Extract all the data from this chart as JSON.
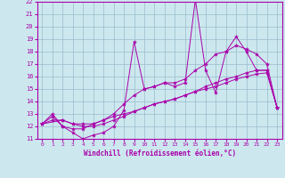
{
  "xlabel": "Windchill (Refroidissement éolien,°C)",
  "xlim": [
    -0.5,
    23.5
  ],
  "ylim": [
    11,
    22
  ],
  "xticks": [
    0,
    1,
    2,
    3,
    4,
    5,
    6,
    7,
    8,
    9,
    10,
    11,
    12,
    13,
    14,
    15,
    16,
    17,
    18,
    19,
    20,
    21,
    22,
    23
  ],
  "yticks": [
    11,
    12,
    13,
    14,
    15,
    16,
    17,
    18,
    19,
    20,
    21,
    22
  ],
  "background_color": "#cce8ee",
  "line_color": "#aa00aa",
  "grid_color": "#99bbcc",
  "line1_x": [
    0,
    1,
    2,
    3,
    4,
    5,
    6,
    7,
    8,
    9,
    10,
    11,
    12,
    13,
    14,
    15,
    16,
    17,
    18,
    19,
    20,
    21,
    22,
    23
  ],
  "line1_y": [
    12.2,
    13.0,
    12.0,
    11.5,
    11.0,
    11.3,
    11.5,
    12.0,
    13.3,
    18.8,
    15.0,
    15.2,
    15.5,
    15.2,
    15.5,
    22.2,
    16.5,
    14.7,
    18.0,
    19.2,
    18.0,
    16.5,
    16.5,
    13.5
  ],
  "line2_x": [
    0,
    1,
    2,
    3,
    4,
    5,
    6,
    7,
    8,
    9,
    10,
    11,
    12,
    13,
    14,
    15,
    16,
    17,
    18,
    19,
    20,
    21,
    22,
    23
  ],
  "line2_y": [
    12.2,
    12.8,
    12.0,
    11.8,
    11.8,
    12.2,
    12.5,
    13.0,
    13.8,
    14.5,
    15.0,
    15.2,
    15.5,
    15.5,
    15.8,
    16.5,
    17.0,
    17.8,
    18.0,
    18.5,
    18.2,
    17.8,
    17.0,
    13.5
  ],
  "line3_x": [
    0,
    2,
    3,
    4,
    5,
    6,
    7,
    8,
    9,
    10,
    11,
    12,
    13,
    14,
    15,
    16,
    17,
    18,
    19,
    20,
    21,
    22,
    23
  ],
  "line3_y": [
    12.2,
    12.5,
    12.2,
    12.0,
    12.0,
    12.2,
    12.5,
    12.8,
    13.2,
    13.5,
    13.8,
    14.0,
    14.2,
    14.5,
    14.8,
    15.2,
    15.5,
    15.8,
    16.0,
    16.3,
    16.5,
    16.5,
    13.5
  ],
  "line4_x": [
    0,
    1,
    2,
    3,
    4,
    5,
    6,
    7,
    8,
    9,
    10,
    11,
    12,
    13,
    14,
    15,
    16,
    17,
    18,
    19,
    20,
    21,
    22,
    23
  ],
  "line4_y": [
    12.2,
    12.5,
    12.5,
    12.2,
    12.2,
    12.2,
    12.5,
    12.8,
    13.0,
    13.2,
    13.5,
    13.8,
    14.0,
    14.2,
    14.5,
    14.8,
    15.0,
    15.2,
    15.5,
    15.8,
    16.0,
    16.2,
    16.3,
    13.5
  ]
}
